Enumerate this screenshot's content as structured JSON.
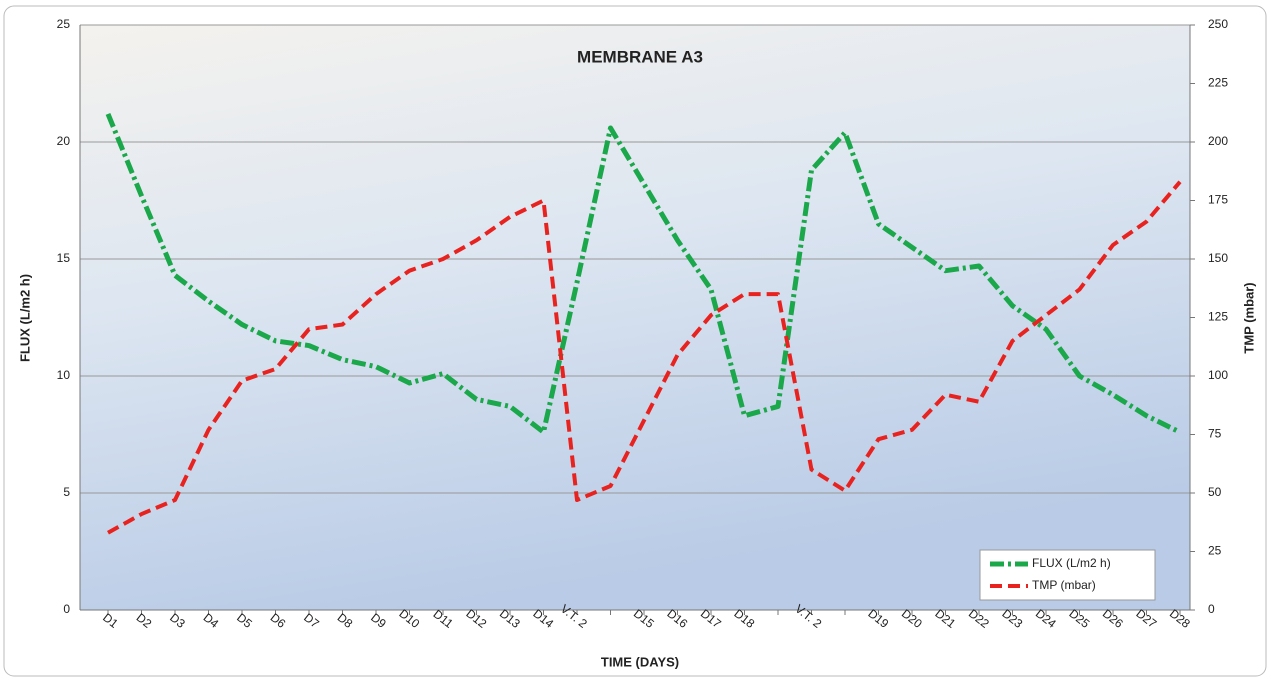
{
  "chart_data": {
    "type": "line",
    "title": "MEMBRANE A3",
    "x_label": "TIME (DAYS)",
    "y_label": "FLUX  (L/m2 h)",
    "y2_label": "TMP  (mbar)",
    "categories": [
      "D1",
      "D2",
      "D3",
      "D4",
      "D5",
      "D6",
      "D7",
      "D8",
      "D9",
      "D10",
      "D11",
      "D12",
      "D13",
      "D14",
      "V.T. 2",
      null,
      "D15",
      "D16",
      "D17",
      "D18",
      null,
      "V.T. 2",
      null,
      "D19",
      "D20",
      "D21",
      "D22",
      "D23",
      "D24",
      "D25",
      "D26",
      "D27",
      "D28"
    ],
    "series": [
      {
        "name": "FLUX  (L/m2 h)",
        "color": "#1aa84a",
        "axis": "y",
        "values": [
          21.2,
          17.7,
          14.3,
          13.2,
          12.2,
          11.5,
          11.3,
          10.7,
          10.4,
          9.7,
          10.1,
          9.0,
          8.7,
          7.6,
          14.0,
          20.6,
          18.2,
          15.8,
          13.7,
          8.3,
          8.7,
          18.8,
          20.4,
          16.5,
          15.5,
          14.5,
          14.7,
          13.0,
          12.0,
          10.0,
          9.2,
          8.3,
          7.6
        ]
      },
      {
        "name": "TMP (mbar)",
        "color": "#e8231f",
        "axis": "y2",
        "values": [
          33,
          41,
          47,
          77,
          98,
          103,
          120,
          122,
          135,
          145,
          150,
          158,
          168,
          175,
          47,
          53,
          81,
          109,
          126,
          135,
          135,
          60,
          51,
          73,
          77,
          92,
          89,
          115,
          126,
          137,
          156,
          166,
          183
        ]
      }
    ],
    "ylim": [
      0,
      25
    ],
    "yticks": [
      0,
      5,
      10,
      15,
      20,
      25
    ],
    "y2lim": [
      0,
      250
    ],
    "y2ticks": [
      0,
      25,
      50,
      75,
      100,
      125,
      150,
      175,
      200,
      225,
      250
    ],
    "grid": true,
    "legend": "lower right"
  }
}
